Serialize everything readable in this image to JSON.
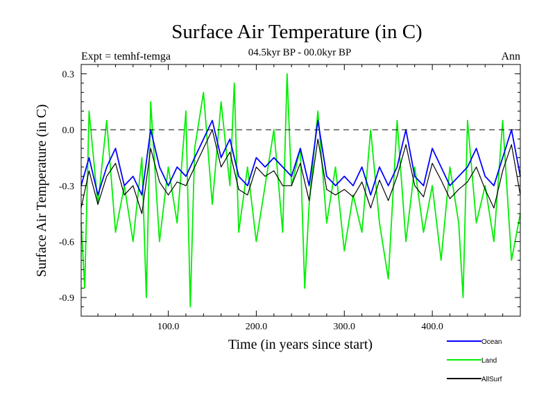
{
  "chart_data": {
    "type": "line",
    "title": "Surface Air Temperature (in C)",
    "subtitle": "04.5kyr BP - 00.0kyr BP",
    "experiment_label": "Expt = temhf-temga",
    "season_label": "Ann",
    "xlabel": "Time (in years since start)",
    "ylabel": "Surface Air Temperature (in C)",
    "xlim": [
      1,
      500
    ],
    "ylim": [
      -1.0,
      0.35
    ],
    "x_ticks": [
      100,
      200,
      300,
      400
    ],
    "x_tick_labels": [
      "100.0",
      "200.0",
      "300.0",
      "400.0"
    ],
    "y_ticks": [
      0.3,
      0.0,
      -0.3,
      -0.6,
      -0.9
    ],
    "y_tick_labels": [
      "0.3",
      "0.0",
      "-0.3",
      "-0.6",
      "-0.9"
    ],
    "reference_line": 0.0,
    "series": [
      {
        "name": "Ocean",
        "color": "#0000ff",
        "x": [
          1,
          10,
          20,
          30,
          40,
          50,
          60,
          70,
          80,
          90,
          100,
          110,
          120,
          130,
          140,
          150,
          160,
          170,
          180,
          190,
          200,
          210,
          220,
          230,
          240,
          250,
          260,
          270,
          280,
          290,
          300,
          310,
          320,
          330,
          340,
          350,
          360,
          370,
          380,
          390,
          400,
          410,
          420,
          430,
          440,
          450,
          460,
          470,
          480,
          490,
          500
        ],
        "values": [
          -0.3,
          -0.15,
          -0.35,
          -0.2,
          -0.1,
          -0.3,
          -0.25,
          -0.35,
          0.0,
          -0.2,
          -0.3,
          -0.2,
          -0.25,
          -0.15,
          -0.05,
          0.05,
          -0.15,
          -0.05,
          -0.25,
          -0.3,
          -0.15,
          -0.2,
          -0.15,
          -0.2,
          -0.25,
          -0.1,
          -0.3,
          0.05,
          -0.25,
          -0.3,
          -0.25,
          -0.3,
          -0.2,
          -0.35,
          -0.2,
          -0.3,
          -0.2,
          0.0,
          -0.25,
          -0.3,
          -0.1,
          -0.2,
          -0.3,
          -0.25,
          -0.2,
          -0.1,
          -0.25,
          -0.3,
          -0.15,
          0.0,
          -0.25
        ]
      },
      {
        "name": "Land",
        "color": "#00ee00",
        "x": [
          1,
          5,
          10,
          20,
          30,
          40,
          50,
          60,
          70,
          75,
          80,
          90,
          100,
          110,
          120,
          125,
          130,
          140,
          150,
          160,
          170,
          175,
          180,
          190,
          200,
          210,
          220,
          230,
          235,
          240,
          250,
          255,
          260,
          270,
          280,
          290,
          300,
          310,
          320,
          330,
          340,
          350,
          360,
          370,
          380,
          390,
          400,
          410,
          420,
          430,
          435,
          440,
          450,
          460,
          470,
          480,
          490,
          500
        ],
        "values": [
          -0.5,
          -0.85,
          0.1,
          -0.4,
          0.05,
          -0.55,
          -0.3,
          -0.6,
          -0.15,
          -0.9,
          0.15,
          -0.6,
          -0.2,
          -0.5,
          0.1,
          -0.95,
          -0.1,
          0.2,
          -0.4,
          0.15,
          -0.3,
          0.25,
          -0.55,
          -0.2,
          -0.6,
          -0.3,
          0.0,
          -0.55,
          0.3,
          -0.3,
          -0.1,
          -0.85,
          -0.4,
          0.1,
          -0.5,
          -0.2,
          -0.65,
          -0.35,
          -0.55,
          0.0,
          -0.5,
          -0.8,
          0.05,
          -0.6,
          -0.2,
          -0.55,
          -0.3,
          -0.7,
          -0.2,
          -0.5,
          -0.9,
          0.05,
          -0.5,
          -0.3,
          -0.6,
          0.05,
          -0.7,
          -0.45
        ]
      },
      {
        "name": "AllSurf",
        "color": "#000000",
        "x": [
          1,
          10,
          20,
          30,
          40,
          50,
          60,
          70,
          80,
          90,
          100,
          110,
          120,
          130,
          140,
          150,
          160,
          170,
          180,
          190,
          200,
          210,
          220,
          230,
          240,
          250,
          260,
          270,
          280,
          290,
          300,
          310,
          320,
          330,
          340,
          350,
          360,
          370,
          380,
          390,
          400,
          410,
          420,
          430,
          440,
          450,
          460,
          470,
          480,
          490,
          500
        ],
        "values": [
          -0.42,
          -0.22,
          -0.4,
          -0.25,
          -0.18,
          -0.35,
          -0.3,
          -0.45,
          -0.1,
          -0.28,
          -0.35,
          -0.28,
          -0.3,
          -0.2,
          -0.1,
          0.0,
          -0.2,
          -0.12,
          -0.32,
          -0.35,
          -0.2,
          -0.25,
          -0.22,
          -0.3,
          -0.3,
          -0.18,
          -0.38,
          -0.05,
          -0.32,
          -0.35,
          -0.32,
          -0.36,
          -0.28,
          -0.42,
          -0.27,
          -0.38,
          -0.25,
          -0.08,
          -0.3,
          -0.36,
          -0.18,
          -0.27,
          -0.37,
          -0.32,
          -0.28,
          -0.2,
          -0.32,
          -0.42,
          -0.22,
          -0.08,
          -0.35
        ]
      }
    ],
    "legend": [
      "Ocean",
      "Land",
      "AllSurf"
    ],
    "legend_position": "bottom-right"
  }
}
